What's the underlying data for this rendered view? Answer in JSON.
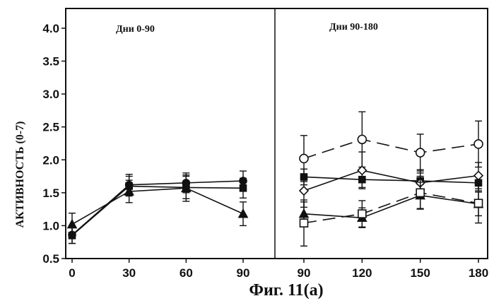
{
  "chart_data": {
    "type": "line",
    "ylabel": "АКТИВНОСТЬ (0-7)",
    "caption": "Фиг. 11(а)",
    "ylim": [
      0.5,
      4.3
    ],
    "yticks": [
      "0.5",
      "1.0",
      "1.5",
      "2.0",
      "2.5",
      "3.0",
      "3.5",
      "4.0"
    ],
    "grid": false,
    "panels": [
      {
        "title": "Дни 0-90",
        "x": [
          0,
          30,
          60,
          90
        ],
        "series": [
          {
            "marker": "circle-filled",
            "dash": false,
            "values": [
              0.86,
              1.62,
              1.65,
              1.68
            ],
            "err": [
              0.13,
              0.16,
              0.15,
              0.15
            ]
          },
          {
            "marker": "square-filled",
            "dash": false,
            "values": [
              0.85,
              1.6,
              1.58,
              1.57
            ],
            "err": [
              0.12,
              0.15,
              0.17,
              0.15
            ]
          },
          {
            "marker": "triangle-filled",
            "dash": false,
            "values": [
              1.02,
              1.52,
              1.57,
              1.18
            ],
            "err": [
              0.17,
              0.17,
              0.2,
              0.18
            ]
          }
        ]
      },
      {
        "title": "Дни 90-180",
        "x": [
          90,
          120,
          150,
          180
        ],
        "series": [
          {
            "marker": "circle-open",
            "dash": true,
            "values": [
              2.02,
              2.31,
              2.11,
              2.24
            ],
            "err": [
              0.35,
              0.42,
              0.28,
              0.35
            ]
          },
          {
            "marker": "square-filled",
            "dash": false,
            "values": [
              1.74,
              1.7,
              1.68,
              1.65
            ],
            "err": [
              0.12,
              0.12,
              0.12,
              0.12
            ]
          },
          {
            "marker": "diamond-open",
            "dash": false,
            "values": [
              1.53,
              1.84,
              1.65,
              1.76
            ],
            "err": [
              0.25,
              0.28,
              0.2,
              0.2
            ]
          },
          {
            "marker": "triangle-filled",
            "dash": false,
            "values": [
              1.18,
              1.12,
              1.46,
              1.33
            ],
            "err": [
              0.18,
              0.15,
              0.2,
              0.18
            ]
          },
          {
            "marker": "square-open",
            "dash": true,
            "values": [
              1.04,
              1.18,
              1.5,
              1.34
            ],
            "err": [
              0.35,
              0.2,
              0.25,
              0.3
            ]
          }
        ]
      }
    ]
  }
}
